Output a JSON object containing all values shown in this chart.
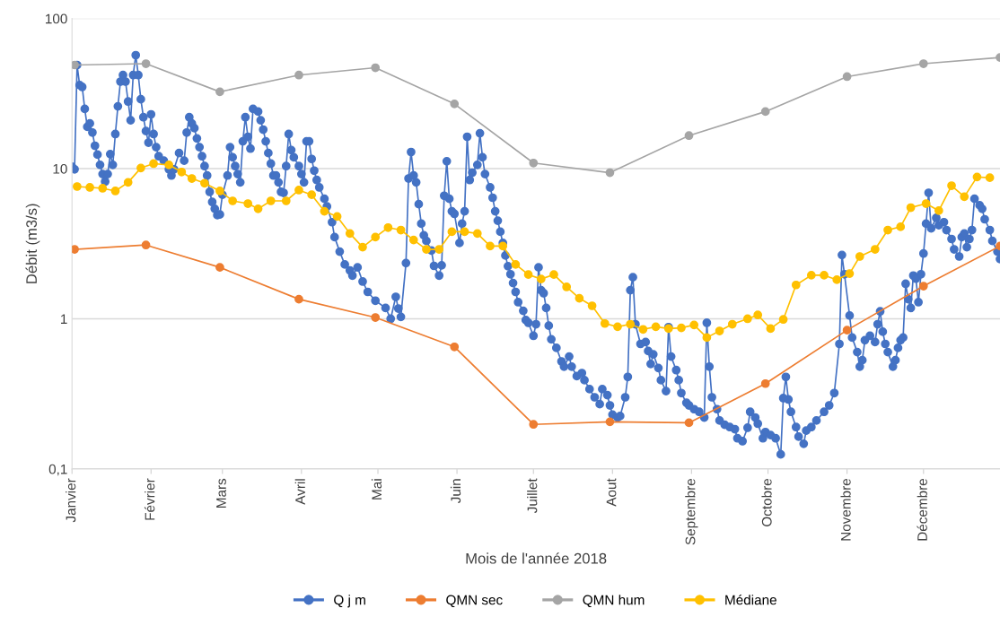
{
  "chart_data": {
    "type": "line",
    "xlabel": "Mois de l'année 2018",
    "ylabel": "Débit (m3/s)",
    "log": "y",
    "grid": "y",
    "legend": "bottom",
    "marker": "circle",
    "line_style": "solid",
    "xlim": [
      "2018-01-01",
      "2018-12-31"
    ],
    "xticks": [
      {
        "value": "2018-01-01",
        "label": "Janvier"
      },
      {
        "value": "2018-02-01",
        "label": "Février"
      },
      {
        "value": "2018-03-01",
        "label": "Mars"
      },
      {
        "value": "2018-04-01",
        "label": "Avril"
      },
      {
        "value": "2018-05-01",
        "label": "Mai"
      },
      {
        "value": "2018-06-01",
        "label": "Juin"
      },
      {
        "value": "2018-07-01",
        "label": "Juillet"
      },
      {
        "value": "2018-08-01",
        "label": "Aout"
      },
      {
        "value": "2018-09-01",
        "label": "Septembre"
      },
      {
        "value": "2018-10-01",
        "label": "Octobre"
      },
      {
        "value": "2018-11-01",
        "label": "Novembre"
      },
      {
        "value": "2018-12-01",
        "label": "Décembre"
      }
    ],
    "ylim": [
      0.1,
      100
    ],
    "yticks": [
      {
        "value": 0.1,
        "label": "0,1"
      },
      1,
      10,
      100
    ],
    "series": [
      {
        "name": "Q j m",
        "color": "#4472c4",
        "x": [
          "2018-01-01",
          "2018-01-02",
          "2018-01-03",
          "2018-01-04",
          "2018-01-05",
          "2018-01-06",
          "2018-01-07",
          "2018-01-08",
          "2018-01-09",
          "2018-01-10",
          "2018-01-11",
          "2018-01-12",
          "2018-01-13",
          "2018-01-14",
          "2018-01-15",
          "2018-01-16",
          "2018-01-17",
          "2018-01-18",
          "2018-01-19",
          "2018-01-20",
          "2018-01-21",
          "2018-01-22",
          "2018-01-23",
          "2018-01-24",
          "2018-01-25",
          "2018-01-26",
          "2018-01-27",
          "2018-01-28",
          "2018-01-29",
          "2018-01-30",
          "2018-01-31",
          "2018-02-01",
          "2018-02-02",
          "2018-02-03",
          "2018-02-04",
          "2018-02-06",
          "2018-02-08",
          "2018-02-09",
          "2018-02-10",
          "2018-02-12",
          "2018-02-14",
          "2018-02-15",
          "2018-02-16",
          "2018-02-17",
          "2018-02-18",
          "2018-02-19",
          "2018-02-20",
          "2018-02-21",
          "2018-02-22",
          "2018-02-23",
          "2018-02-24",
          "2018-02-25",
          "2018-02-26",
          "2018-02-27",
          "2018-02-28",
          "2018-03-01",
          "2018-03-03",
          "2018-03-04",
          "2018-03-05",
          "2018-03-06",
          "2018-03-07",
          "2018-03-08",
          "2018-03-09",
          "2018-03-10",
          "2018-03-11",
          "2018-03-12",
          "2018-03-13",
          "2018-03-15",
          "2018-03-16",
          "2018-03-17",
          "2018-03-18",
          "2018-03-19",
          "2018-03-20",
          "2018-03-21",
          "2018-03-22",
          "2018-03-23",
          "2018-03-24",
          "2018-03-25",
          "2018-03-26",
          "2018-03-27",
          "2018-03-28",
          "2018-03-29",
          "2018-03-31",
          "2018-04-01",
          "2018-04-02",
          "2018-04-03",
          "2018-04-04",
          "2018-04-05",
          "2018-04-06",
          "2018-04-07",
          "2018-04-08",
          "2018-04-10",
          "2018-04-11",
          "2018-04-13",
          "2018-04-14",
          "2018-04-16",
          "2018-04-18",
          "2018-04-20",
          "2018-04-21",
          "2018-04-23",
          "2018-04-25",
          "2018-04-27",
          "2018-04-30",
          "2018-05-04",
          "2018-05-06",
          "2018-05-08",
          "2018-05-09",
          "2018-05-10",
          "2018-05-12",
          "2018-05-13",
          "2018-05-14",
          "2018-05-15",
          "2018-05-16",
          "2018-05-17",
          "2018-05-18",
          "2018-05-19",
          "2018-05-20",
          "2018-05-22",
          "2018-05-23",
          "2018-05-25",
          "2018-05-26",
          "2018-05-27",
          "2018-05-28",
          "2018-05-29",
          "2018-05-30",
          "2018-05-31",
          "2018-06-02",
          "2018-06-03",
          "2018-06-04",
          "2018-06-05",
          "2018-06-06",
          "2018-06-07",
          "2018-06-09",
          "2018-06-10",
          "2018-06-11",
          "2018-06-12",
          "2018-06-14",
          "2018-06-15",
          "2018-06-16",
          "2018-06-17",
          "2018-06-18",
          "2018-06-19",
          "2018-06-20",
          "2018-06-21",
          "2018-06-22",
          "2018-06-23",
          "2018-06-24",
          "2018-06-25",
          "2018-06-27",
          "2018-06-28",
          "2018-06-29",
          "2018-07-01",
          "2018-07-02",
          "2018-07-03",
          "2018-07-04",
          "2018-07-05",
          "2018-07-06",
          "2018-07-07",
          "2018-07-08",
          "2018-07-10",
          "2018-07-12",
          "2018-07-13",
          "2018-07-15",
          "2018-07-16",
          "2018-07-18",
          "2018-07-20",
          "2018-07-21",
          "2018-07-23",
          "2018-07-25",
          "2018-07-27",
          "2018-07-28",
          "2018-07-30",
          "2018-07-31",
          "2018-08-01",
          "2018-08-03",
          "2018-08-04",
          "2018-08-06",
          "2018-08-07",
          "2018-08-08",
          "2018-08-09",
          "2018-08-10",
          "2018-08-12",
          "2018-08-14",
          "2018-08-15",
          "2018-08-16",
          "2018-08-17",
          "2018-08-19",
          "2018-08-20",
          "2018-08-22",
          "2018-08-23",
          "2018-08-24",
          "2018-08-26",
          "2018-08-27",
          "2018-08-28",
          "2018-08-30",
          "2018-08-31",
          "2018-09-02",
          "2018-09-04",
          "2018-09-06",
          "2018-09-07",
          "2018-09-08",
          "2018-09-09",
          "2018-09-11",
          "2018-09-12",
          "2018-09-14",
          "2018-09-16",
          "2018-09-18",
          "2018-09-19",
          "2018-09-21",
          "2018-09-23",
          "2018-09-24",
          "2018-09-26",
          "2018-09-27",
          "2018-09-29",
          "2018-09-30",
          "2018-10-02",
          "2018-10-04",
          "2018-10-06",
          "2018-10-07",
          "2018-10-08",
          "2018-10-09",
          "2018-10-10",
          "2018-10-12",
          "2018-10-13",
          "2018-10-15",
          "2018-10-16",
          "2018-10-18",
          "2018-10-20",
          "2018-10-23",
          "2018-10-25",
          "2018-10-27",
          "2018-10-29",
          "2018-10-30",
          "2018-10-31",
          "2018-11-02",
          "2018-11-03",
          "2018-11-05",
          "2018-11-06",
          "2018-11-07",
          "2018-11-08",
          "2018-11-10",
          "2018-11-12",
          "2018-11-13",
          "2018-11-14",
          "2018-11-15",
          "2018-11-16",
          "2018-11-17",
          "2018-11-19",
          "2018-11-20",
          "2018-11-21",
          "2018-11-22",
          "2018-11-23",
          "2018-11-24",
          "2018-11-25",
          "2018-11-26",
          "2018-11-27",
          "2018-11-28",
          "2018-11-29",
          "2018-11-30",
          "2018-12-01",
          "2018-12-02",
          "2018-12-03",
          "2018-12-04",
          "2018-12-06",
          "2018-12-07",
          "2018-12-09",
          "2018-12-10",
          "2018-12-12",
          "2018-12-13",
          "2018-12-15",
          "2018-12-16",
          "2018-12-17",
          "2018-12-18",
          "2018-12-19",
          "2018-12-20",
          "2018-12-21",
          "2018-12-23",
          "2018-12-24",
          "2018-12-25",
          "2018-12-27",
          "2018-12-28",
          "2018-12-30",
          "2018-12-31"
        ],
        "values": [
          10.3,
          9.9,
          49,
          36,
          35,
          25,
          19,
          20,
          17.4,
          14.2,
          12.4,
          10.6,
          9.2,
          8.2,
          9.2,
          12.5,
          10.6,
          17,
          26,
          38,
          42,
          38,
          28,
          21,
          42,
          57,
          42,
          29,
          22,
          17.8,
          14.9,
          23,
          17,
          13.9,
          12.1,
          11.3,
          9.9,
          9.0,
          9.9,
          12.7,
          11.3,
          17.4,
          22,
          20,
          18.6,
          15.9,
          13.9,
          12.1,
          10.4,
          9.0,
          7.0,
          6.0,
          5.4,
          4.9,
          4.95,
          6.7,
          9.0,
          13.9,
          11.9,
          10.4,
          9.2,
          8.1,
          15.2,
          22,
          16.3,
          13.6,
          25,
          24,
          21,
          18.2,
          15.2,
          12.7,
          10.8,
          9.0,
          9.0,
          8.1,
          7.0,
          6.9,
          10.4,
          17,
          13.3,
          11.9,
          10.4,
          9.2,
          8.1,
          15.2,
          15.2,
          11.6,
          9.7,
          8.4,
          7.5,
          6.3,
          5.6,
          4.4,
          3.5,
          2.8,
          2.3,
          2.1,
          1.94,
          2.2,
          1.77,
          1.51,
          1.32,
          1.18,
          1.0,
          1.4,
          1.17,
          1.03,
          2.35,
          8.6,
          12.9,
          9.0,
          8.1,
          5.8,
          4.3,
          3.6,
          3.3,
          2.85,
          2.25,
          1.94,
          2.27,
          6.6,
          11.2,
          6.3,
          5.2,
          5.0,
          3.2,
          4.3,
          5.2,
          16.3,
          8.4,
          9.4,
          10.6,
          17.2,
          11.9,
          9.2,
          7.5,
          6.4,
          5.2,
          4.5,
          3.8,
          3.2,
          2.64,
          2.24,
          1.98,
          1.73,
          1.51,
          1.29,
          1.13,
          0.98,
          0.94,
          0.77,
          0.92,
          2.2,
          1.55,
          1.48,
          1.18,
          0.9,
          0.73,
          0.64,
          0.52,
          0.48,
          0.56,
          0.48,
          0.415,
          0.435,
          0.39,
          0.34,
          0.3,
          0.27,
          0.34,
          0.31,
          0.265,
          0.23,
          0.22,
          0.225,
          0.3,
          0.41,
          1.55,
          1.89,
          0.92,
          0.68,
          0.7,
          0.61,
          0.5,
          0.58,
          0.47,
          0.39,
          0.33,
          0.88,
          0.56,
          0.455,
          0.39,
          0.32,
          0.276,
          0.265,
          0.25,
          0.24,
          0.22,
          0.94,
          0.48,
          0.3,
          0.25,
          0.21,
          0.197,
          0.19,
          0.184,
          0.16,
          0.153,
          0.188,
          0.24,
          0.22,
          0.2,
          0.16,
          0.176,
          0.168,
          0.16,
          0.125,
          0.296,
          0.41,
          0.29,
          0.24,
          0.19,
          0.164,
          0.147,
          0.18,
          0.19,
          0.21,
          0.24,
          0.265,
          0.32,
          0.68,
          2.66,
          1.98,
          1.05,
          0.75,
          0.6,
          0.48,
          0.53,
          0.72,
          0.77,
          0.7,
          0.92,
          1.12,
          0.82,
          0.68,
          0.6,
          0.48,
          0.53,
          0.64,
          0.72,
          0.75,
          1.71,
          1.35,
          1.18,
          1.94,
          1.85,
          1.29,
          1.98,
          2.72,
          4.3,
          6.9,
          4.0,
          4.7,
          4.2,
          4.4,
          3.9,
          3.4,
          2.9,
          2.6,
          3.5,
          3.7,
          3.0,
          3.4,
          3.9,
          6.3,
          5.7,
          5.4,
          4.6,
          3.9,
          3.3,
          2.8,
          2.5
        ]
      },
      {
        "name": "QMN sec",
        "color": "#ed7d31",
        "x": [
          "2018-01-02",
          "2018-01-30",
          "2018-02-28",
          "2018-03-31",
          "2018-04-30",
          "2018-05-31",
          "2018-07-01",
          "2018-07-31",
          "2018-08-31",
          "2018-09-30",
          "2018-11-01",
          "2018-12-01",
          "2018-12-31"
        ],
        "values": [
          2.9,
          3.1,
          2.2,
          1.35,
          1.02,
          0.65,
          0.198,
          0.206,
          0.203,
          0.37,
          0.84,
          1.65,
          3.05
        ]
      },
      {
        "name": "QMN hum",
        "color": "#a5a5a5",
        "x": [
          "2018-01-02",
          "2018-01-30",
          "2018-02-28",
          "2018-03-31",
          "2018-04-30",
          "2018-05-31",
          "2018-07-01",
          "2018-07-31",
          "2018-08-31",
          "2018-09-30",
          "2018-11-01",
          "2018-12-01",
          "2018-12-31"
        ],
        "values": [
          49,
          50,
          32.5,
          42,
          47,
          27,
          10.9,
          9.4,
          16.6,
          24,
          41,
          50,
          55
        ]
      },
      {
        "name": "Médiane",
        "color": "#ffc000",
        "x": [
          "2018-01-03",
          "2018-01-08",
          "2018-01-13",
          "2018-01-18",
          "2018-01-23",
          "2018-01-28",
          "2018-02-02",
          "2018-02-08",
          "2018-02-13",
          "2018-02-17",
          "2018-02-22",
          "2018-02-28",
          "2018-03-05",
          "2018-03-11",
          "2018-03-15",
          "2018-03-20",
          "2018-03-26",
          "2018-03-31",
          "2018-04-05",
          "2018-04-10",
          "2018-04-15",
          "2018-04-20",
          "2018-04-25",
          "2018-04-30",
          "2018-05-05",
          "2018-05-10",
          "2018-05-15",
          "2018-05-20",
          "2018-05-25",
          "2018-05-30",
          "2018-06-04",
          "2018-06-09",
          "2018-06-14",
          "2018-06-19",
          "2018-06-24",
          "2018-06-29",
          "2018-07-04",
          "2018-07-09",
          "2018-07-14",
          "2018-07-19",
          "2018-07-24",
          "2018-07-29",
          "2018-08-03",
          "2018-08-08",
          "2018-08-13",
          "2018-08-18",
          "2018-08-23",
          "2018-08-28",
          "2018-09-02",
          "2018-09-07",
          "2018-09-12",
          "2018-09-17",
          "2018-09-23",
          "2018-09-27",
          "2018-10-02",
          "2018-10-07",
          "2018-10-12",
          "2018-10-18",
          "2018-10-23",
          "2018-10-28",
          "2018-11-02",
          "2018-11-06",
          "2018-11-12",
          "2018-11-17",
          "2018-11-22",
          "2018-11-26",
          "2018-12-02",
          "2018-12-07",
          "2018-12-12",
          "2018-12-17",
          "2018-12-22",
          "2018-12-27"
        ],
        "values": [
          7.6,
          7.5,
          7.4,
          7.1,
          8.1,
          10.1,
          10.8,
          10.6,
          9.5,
          8.6,
          8.0,
          7.1,
          6.1,
          5.85,
          5.4,
          6.1,
          6.1,
          7.2,
          6.7,
          5.2,
          4.8,
          3.7,
          3.0,
          3.5,
          4.05,
          3.9,
          3.35,
          2.9,
          2.9,
          3.8,
          3.8,
          3.7,
          3.05,
          3.05,
          2.3,
          1.97,
          1.84,
          1.97,
          1.63,
          1.37,
          1.22,
          0.93,
          0.885,
          0.92,
          0.85,
          0.885,
          0.86,
          0.87,
          0.91,
          0.75,
          0.83,
          0.92,
          1.0,
          1.06,
          0.86,
          0.99,
          1.68,
          1.95,
          1.95,
          1.82,
          2.0,
          2.6,
          2.9,
          3.9,
          4.1,
          5.5,
          5.85,
          5.25,
          7.7,
          6.5,
          8.8,
          8.7
        ]
      }
    ]
  }
}
